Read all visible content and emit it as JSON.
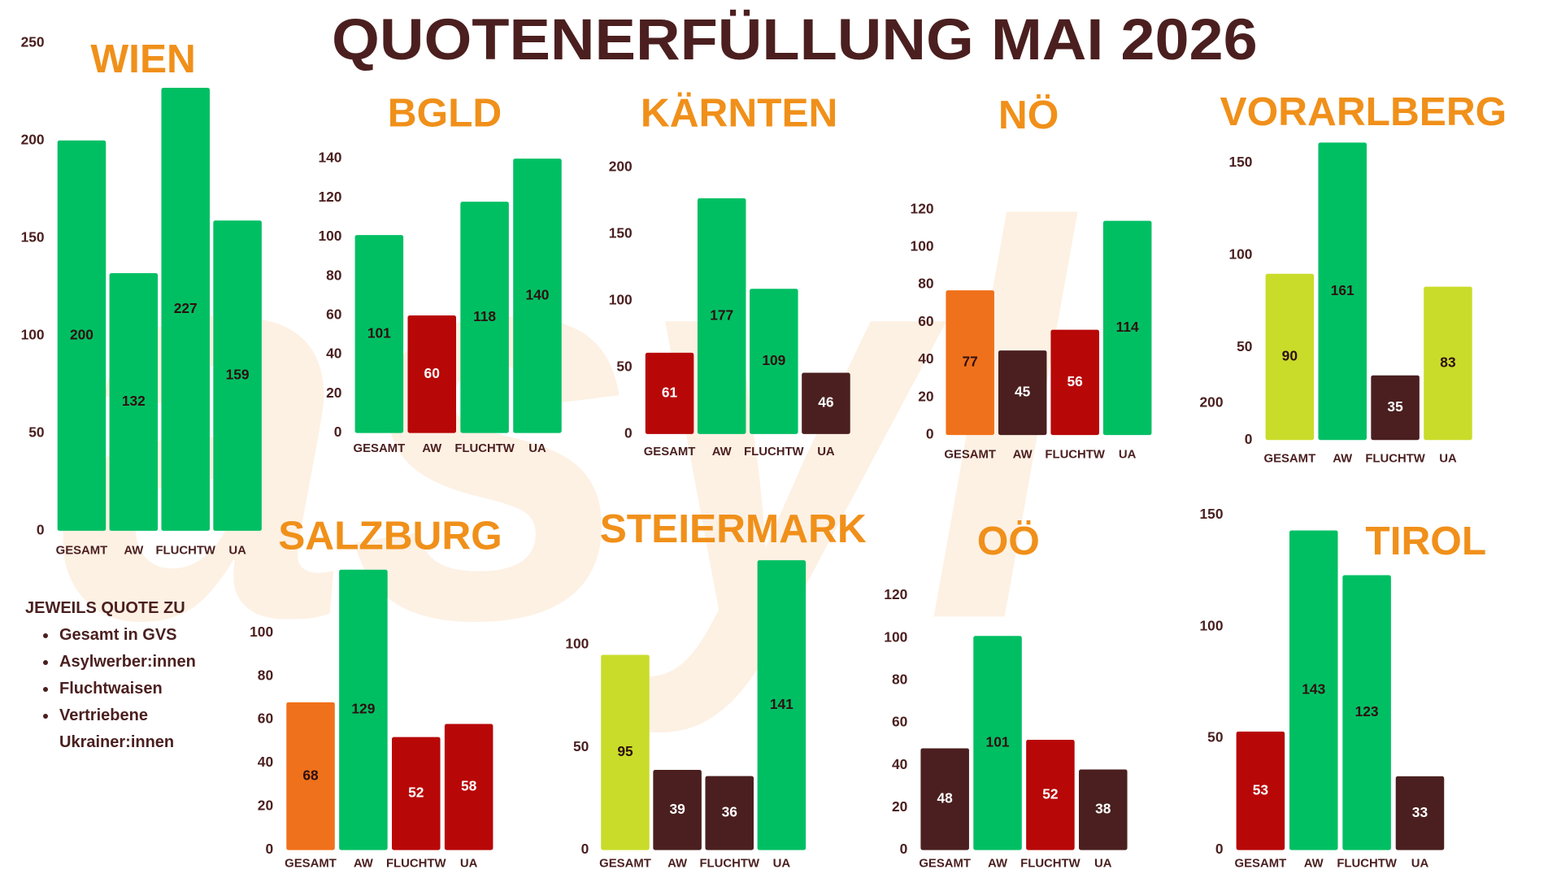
{
  "title": "QUOTENERFÜLLUNG MAI 2026",
  "watermark": "asyl",
  "note": {
    "heading": "JEWEILS QUOTE ZU",
    "items": [
      "Gesamt in GVS",
      "Asylwerber:innen",
      "Fluchtwaisen",
      "Vertriebene Ukrainer:innen"
    ]
  },
  "chart_data": [
    {
      "type": "bar",
      "title": "WIEN",
      "categories": [
        "GESAMT",
        "AW",
        "FLUCHTW",
        "UA"
      ],
      "values": [
        200,
        132,
        227,
        159
      ],
      "colors": [
        "#00bf63",
        "#00bf63",
        "#00bf63",
        "#00bf63"
      ],
      "ylim": [
        0,
        250
      ],
      "yticks": [
        0,
        50,
        100,
        150,
        200,
        250
      ]
    },
    {
      "type": "bar",
      "title": "BGLD",
      "categories": [
        "GESAMT",
        "AW",
        "FLUCHTW",
        "UA"
      ],
      "values": [
        101,
        60,
        118,
        140
      ],
      "colors": [
        "#00bf63",
        "#b80707",
        "#00bf63",
        "#00bf63"
      ],
      "ylim": [
        0,
        140
      ],
      "yticks": [
        0,
        20,
        40,
        60,
        80,
        100,
        120,
        140
      ]
    },
    {
      "type": "bar",
      "title": "KÄRNTEN",
      "categories": [
        "GESAMT",
        "AW",
        "FLUCHTW",
        "UA"
      ],
      "values": [
        61,
        177,
        109,
        46
      ],
      "colors": [
        "#b80707",
        "#00bf63",
        "#00bf63",
        "#4b1f1f"
      ],
      "ylim": [
        0,
        200
      ],
      "yticks": [
        0,
        50,
        100,
        150,
        200
      ]
    },
    {
      "type": "bar",
      "title": "NÖ",
      "categories": [
        "GESAMT",
        "AW",
        "FLUCHTW",
        "UA"
      ],
      "values": [
        77,
        45,
        56,
        114
      ],
      "colors": [
        "#f0711b",
        "#4b1f1f",
        "#b80707",
        "#00bf63"
      ],
      "ylim": [
        0,
        120
      ],
      "yticks": [
        0,
        20,
        40,
        60,
        80,
        100,
        120
      ]
    },
    {
      "type": "bar",
      "title": "VORARLBERG",
      "categories": [
        "GESAMT",
        "AW",
        "FLUCHTW",
        "UA"
      ],
      "values": [
        90,
        161,
        35,
        83
      ],
      "colors": [
        "#c9dc2a",
        "#00bf63",
        "#4b1f1f",
        "#c9dc2a"
      ],
      "ylim": [
        0,
        175
      ],
      "yticks": [
        0,
        50,
        100,
        150
      ]
    },
    {
      "type": "bar",
      "title": "SALZBURG",
      "categories": [
        "GESAMT",
        "AW",
        "FLUCHTW",
        "UA"
      ],
      "values": [
        68,
        129,
        52,
        58
      ],
      "colors": [
        "#f0711b",
        "#00bf63",
        "#b80707",
        "#b80707"
      ],
      "ylim": [
        0,
        140
      ],
      "yticks": [
        0,
        20,
        40,
        60,
        80,
        100
      ]
    },
    {
      "type": "bar",
      "title": "STEIERMARK",
      "categories": [
        "GESAMT",
        "AW",
        "FLUCHTW",
        "UA"
      ],
      "values": [
        95,
        39,
        36,
        141
      ],
      "colors": [
        "#c9dc2a",
        "#4b1f1f",
        "#4b1f1f",
        "#00bf63"
      ],
      "ylim": [
        0,
        150
      ],
      "yticks": [
        0,
        50,
        100
      ]
    },
    {
      "type": "bar",
      "title": "OÖ",
      "categories": [
        "GESAMT",
        "AW",
        "FLUCHTW",
        "UA"
      ],
      "values": [
        48,
        101,
        52,
        38
      ],
      "colors": [
        "#4b1f1f",
        "#00bf63",
        "#b80707",
        "#4b1f1f"
      ],
      "ylim": [
        0,
        120
      ],
      "yticks": [
        0,
        20,
        40,
        60,
        80,
        100,
        120
      ]
    },
    {
      "type": "bar",
      "title": "TIROL",
      "categories": [
        "GESAMT",
        "AW",
        "FLUCHTW",
        "UA"
      ],
      "values": [
        53,
        143,
        123,
        33
      ],
      "colors": [
        "#b80707",
        "#00bf63",
        "#00bf63",
        "#4b1f1f"
      ],
      "ylim": [
        0,
        200
      ],
      "yticks": [
        0,
        50,
        100,
        150,
        200
      ]
    }
  ]
}
